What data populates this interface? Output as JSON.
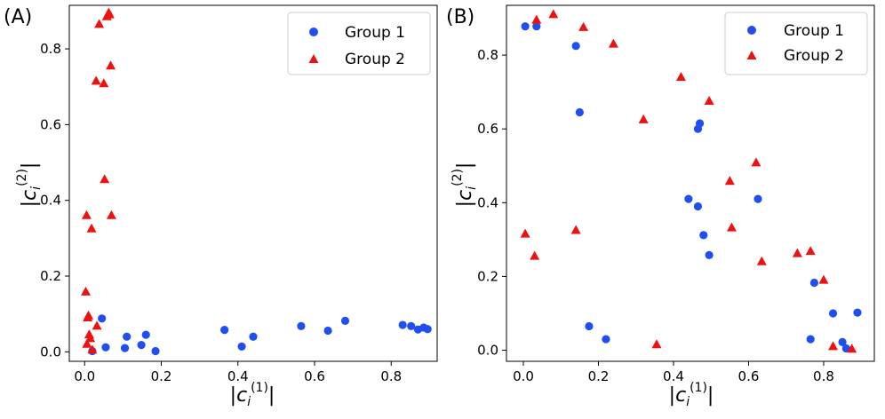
{
  "chart_data": [
    {
      "type": "scatter",
      "panel_label": "(A)",
      "xlabel": "|c_i^(1)|",
      "ylabel": "|c_i^(2)|",
      "xlim": [
        -0.04,
        0.92
      ],
      "ylim": [
        -0.025,
        0.915
      ],
      "xticks": [
        0.0,
        0.2,
        0.4,
        0.6,
        0.8
      ],
      "yticks": [
        0.0,
        0.2,
        0.4,
        0.6,
        0.8
      ],
      "legend": {
        "position": "top-right"
      },
      "series": [
        {
          "name": "Group 1",
          "marker": "circle",
          "color": "#1f4ff2",
          "points": [
            [
              0.02,
              0.002
            ],
            [
              0.045,
              0.088
            ],
            [
              0.055,
              0.012
            ],
            [
              0.105,
              0.01
            ],
            [
              0.11,
              0.04
            ],
            [
              0.148,
              0.018
            ],
            [
              0.16,
              0.045
            ],
            [
              0.185,
              0.002
            ],
            [
              0.365,
              0.058
            ],
            [
              0.41,
              0.014
            ],
            [
              0.44,
              0.04
            ],
            [
              0.565,
              0.068
            ],
            [
              0.635,
              0.056
            ],
            [
              0.68,
              0.082
            ],
            [
              0.83,
              0.071
            ],
            [
              0.852,
              0.068
            ],
            [
              0.87,
              0.059
            ],
            [
              0.885,
              0.064
            ],
            [
              0.895,
              0.06
            ]
          ]
        },
        {
          "name": "Group 2",
          "marker": "triangle",
          "color": "#ee1111",
          "points": [
            [
              0.003,
              0.158
            ],
            [
              0.005,
              0.36
            ],
            [
              0.006,
              0.02
            ],
            [
              0.008,
              0.09
            ],
            [
              0.01,
              0.095
            ],
            [
              0.012,
              0.045
            ],
            [
              0.015,
              0.035
            ],
            [
              0.018,
              0.325
            ],
            [
              0.02,
              0.005
            ],
            [
              0.03,
              0.715
            ],
            [
              0.032,
              0.068
            ],
            [
              0.038,
              0.865
            ],
            [
              0.05,
              0.708
            ],
            [
              0.052,
              0.455
            ],
            [
              0.058,
              0.885
            ],
            [
              0.063,
              0.895
            ],
            [
              0.065,
              0.89
            ],
            [
              0.068,
              0.755
            ],
            [
              0.07,
              0.36
            ]
          ]
        }
      ]
    },
    {
      "type": "scatter",
      "panel_label": "(B)",
      "xlabel": "|c_i^(1)|",
      "ylabel": "|c_i^(2)|",
      "xlim": [
        -0.045,
        0.935
      ],
      "ylim": [
        -0.03,
        0.935
      ],
      "xticks": [
        0.0,
        0.2,
        0.4,
        0.6,
        0.8
      ],
      "yticks": [
        0.0,
        0.2,
        0.4,
        0.6,
        0.8
      ],
      "legend": {
        "position": "top-right"
      },
      "series": [
        {
          "name": "Group 1",
          "marker": "circle",
          "color": "#1f4ff2",
          "points": [
            [
              0.005,
              0.878
            ],
            [
              0.035,
              0.878
            ],
            [
              0.14,
              0.825
            ],
            [
              0.15,
              0.645
            ],
            [
              0.175,
              0.065
            ],
            [
              0.22,
              0.03
            ],
            [
              0.44,
              0.41
            ],
            [
              0.465,
              0.39
            ],
            [
              0.465,
              0.6
            ],
            [
              0.47,
              0.615
            ],
            [
              0.48,
              0.312
            ],
            [
              0.495,
              0.258
            ],
            [
              0.625,
              0.41
            ],
            [
              0.765,
              0.03
            ],
            [
              0.775,
              0.183
            ],
            [
              0.825,
              0.1
            ],
            [
              0.85,
              0.022
            ],
            [
              0.86,
              0.005
            ],
            [
              0.89,
              0.102
            ]
          ]
        },
        {
          "name": "Group 2",
          "marker": "triangle",
          "color": "#ee1111",
          "points": [
            [
              0.005,
              0.315
            ],
            [
              0.03,
              0.255
            ],
            [
              0.035,
              0.895
            ],
            [
              0.08,
              0.91
            ],
            [
              0.14,
              0.325
            ],
            [
              0.16,
              0.875
            ],
            [
              0.24,
              0.83
            ],
            [
              0.32,
              0.625
            ],
            [
              0.355,
              0.015
            ],
            [
              0.42,
              0.74
            ],
            [
              0.495,
              0.675
            ],
            [
              0.55,
              0.458
            ],
            [
              0.555,
              0.332
            ],
            [
              0.62,
              0.508
            ],
            [
              0.635,
              0.24
            ],
            [
              0.73,
              0.262
            ],
            [
              0.765,
              0.268
            ],
            [
              0.8,
              0.19
            ],
            [
              0.825,
              0.01
            ],
            [
              0.875,
              0.003
            ]
          ]
        }
      ]
    }
  ]
}
